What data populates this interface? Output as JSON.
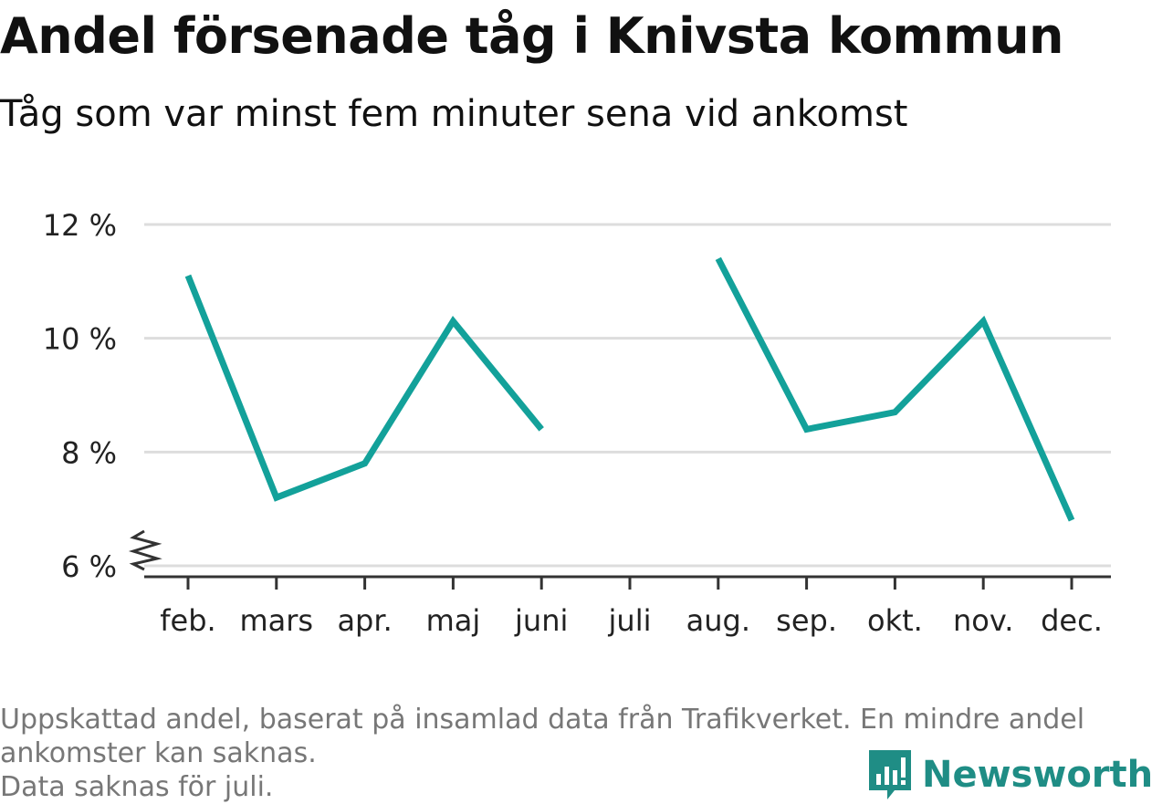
{
  "title": "Andel försenade tåg i Knivsta kommun",
  "subtitle": "Tåg som var minst fem minuter sena vid ankomst",
  "footnote": {
    "line1": "Uppskattad andel, baserat på insamlad data från Trafikverket. En mindre andel",
    "line2": "ankomster kan saknas.",
    "line3": "Data saknas för juli."
  },
  "brand": {
    "name": "Newsworthy",
    "color": "#1f8d85"
  },
  "colors": {
    "line": "#13a19a",
    "grid": "#dddddd",
    "axis": "#333333"
  },
  "chart_data": {
    "type": "line",
    "title": "Andel försenade tåg i Knivsta kommun",
    "subtitle": "Tåg som var minst fem minuter sena vid ankomst",
    "xlabel": "",
    "ylabel": "",
    "categories": [
      "feb.",
      "mars",
      "apr.",
      "maj",
      "juni",
      "juli",
      "aug.",
      "sep.",
      "okt.",
      "nov.",
      "dec."
    ],
    "series": [
      {
        "values": [
          11.1,
          7.2,
          7.8,
          10.3,
          8.4,
          null,
          11.4,
          8.4,
          8.7,
          10.3,
          6.8
        ]
      }
    ],
    "y_ticks": [
      6,
      8,
      10,
      12
    ],
    "y_tick_labels": [
      "6 %",
      "8 %",
      "10 %",
      "12 %"
    ],
    "ylim": [
      6,
      12
    ],
    "y_axis_break": true,
    "grid": true,
    "legend": "none"
  }
}
